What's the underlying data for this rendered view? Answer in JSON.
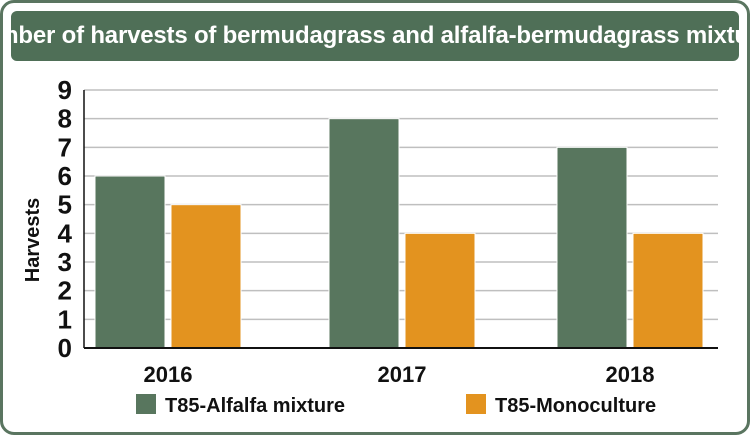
{
  "chart_data": {
    "type": "bar",
    "title": "Number of harvests of bermudagrass and alfalfa-bermudagrass mixtures",
    "xlabel": "",
    "ylabel": "Harvests",
    "categories": [
      "2016",
      "2017",
      "2018"
    ],
    "series": [
      {
        "name": "T85-Alfalfa mixture",
        "values": [
          6,
          8,
          7
        ],
        "color": "#58765e"
      },
      {
        "name": "T85-Monoculture",
        "values": [
          5,
          4,
          4
        ],
        "color": "#e3931f"
      }
    ],
    "ylim": [
      0,
      9
    ],
    "yticks": [
      "0",
      "1",
      "2",
      "3",
      "4",
      "5",
      "6",
      "7",
      "8",
      "9"
    ],
    "grid": true,
    "legend": "bottom"
  },
  "colors": {
    "frame": "#5a7560",
    "title_background": "#4f6f57",
    "title_text": "#ffffff",
    "grid": "#bfbfbf"
  }
}
